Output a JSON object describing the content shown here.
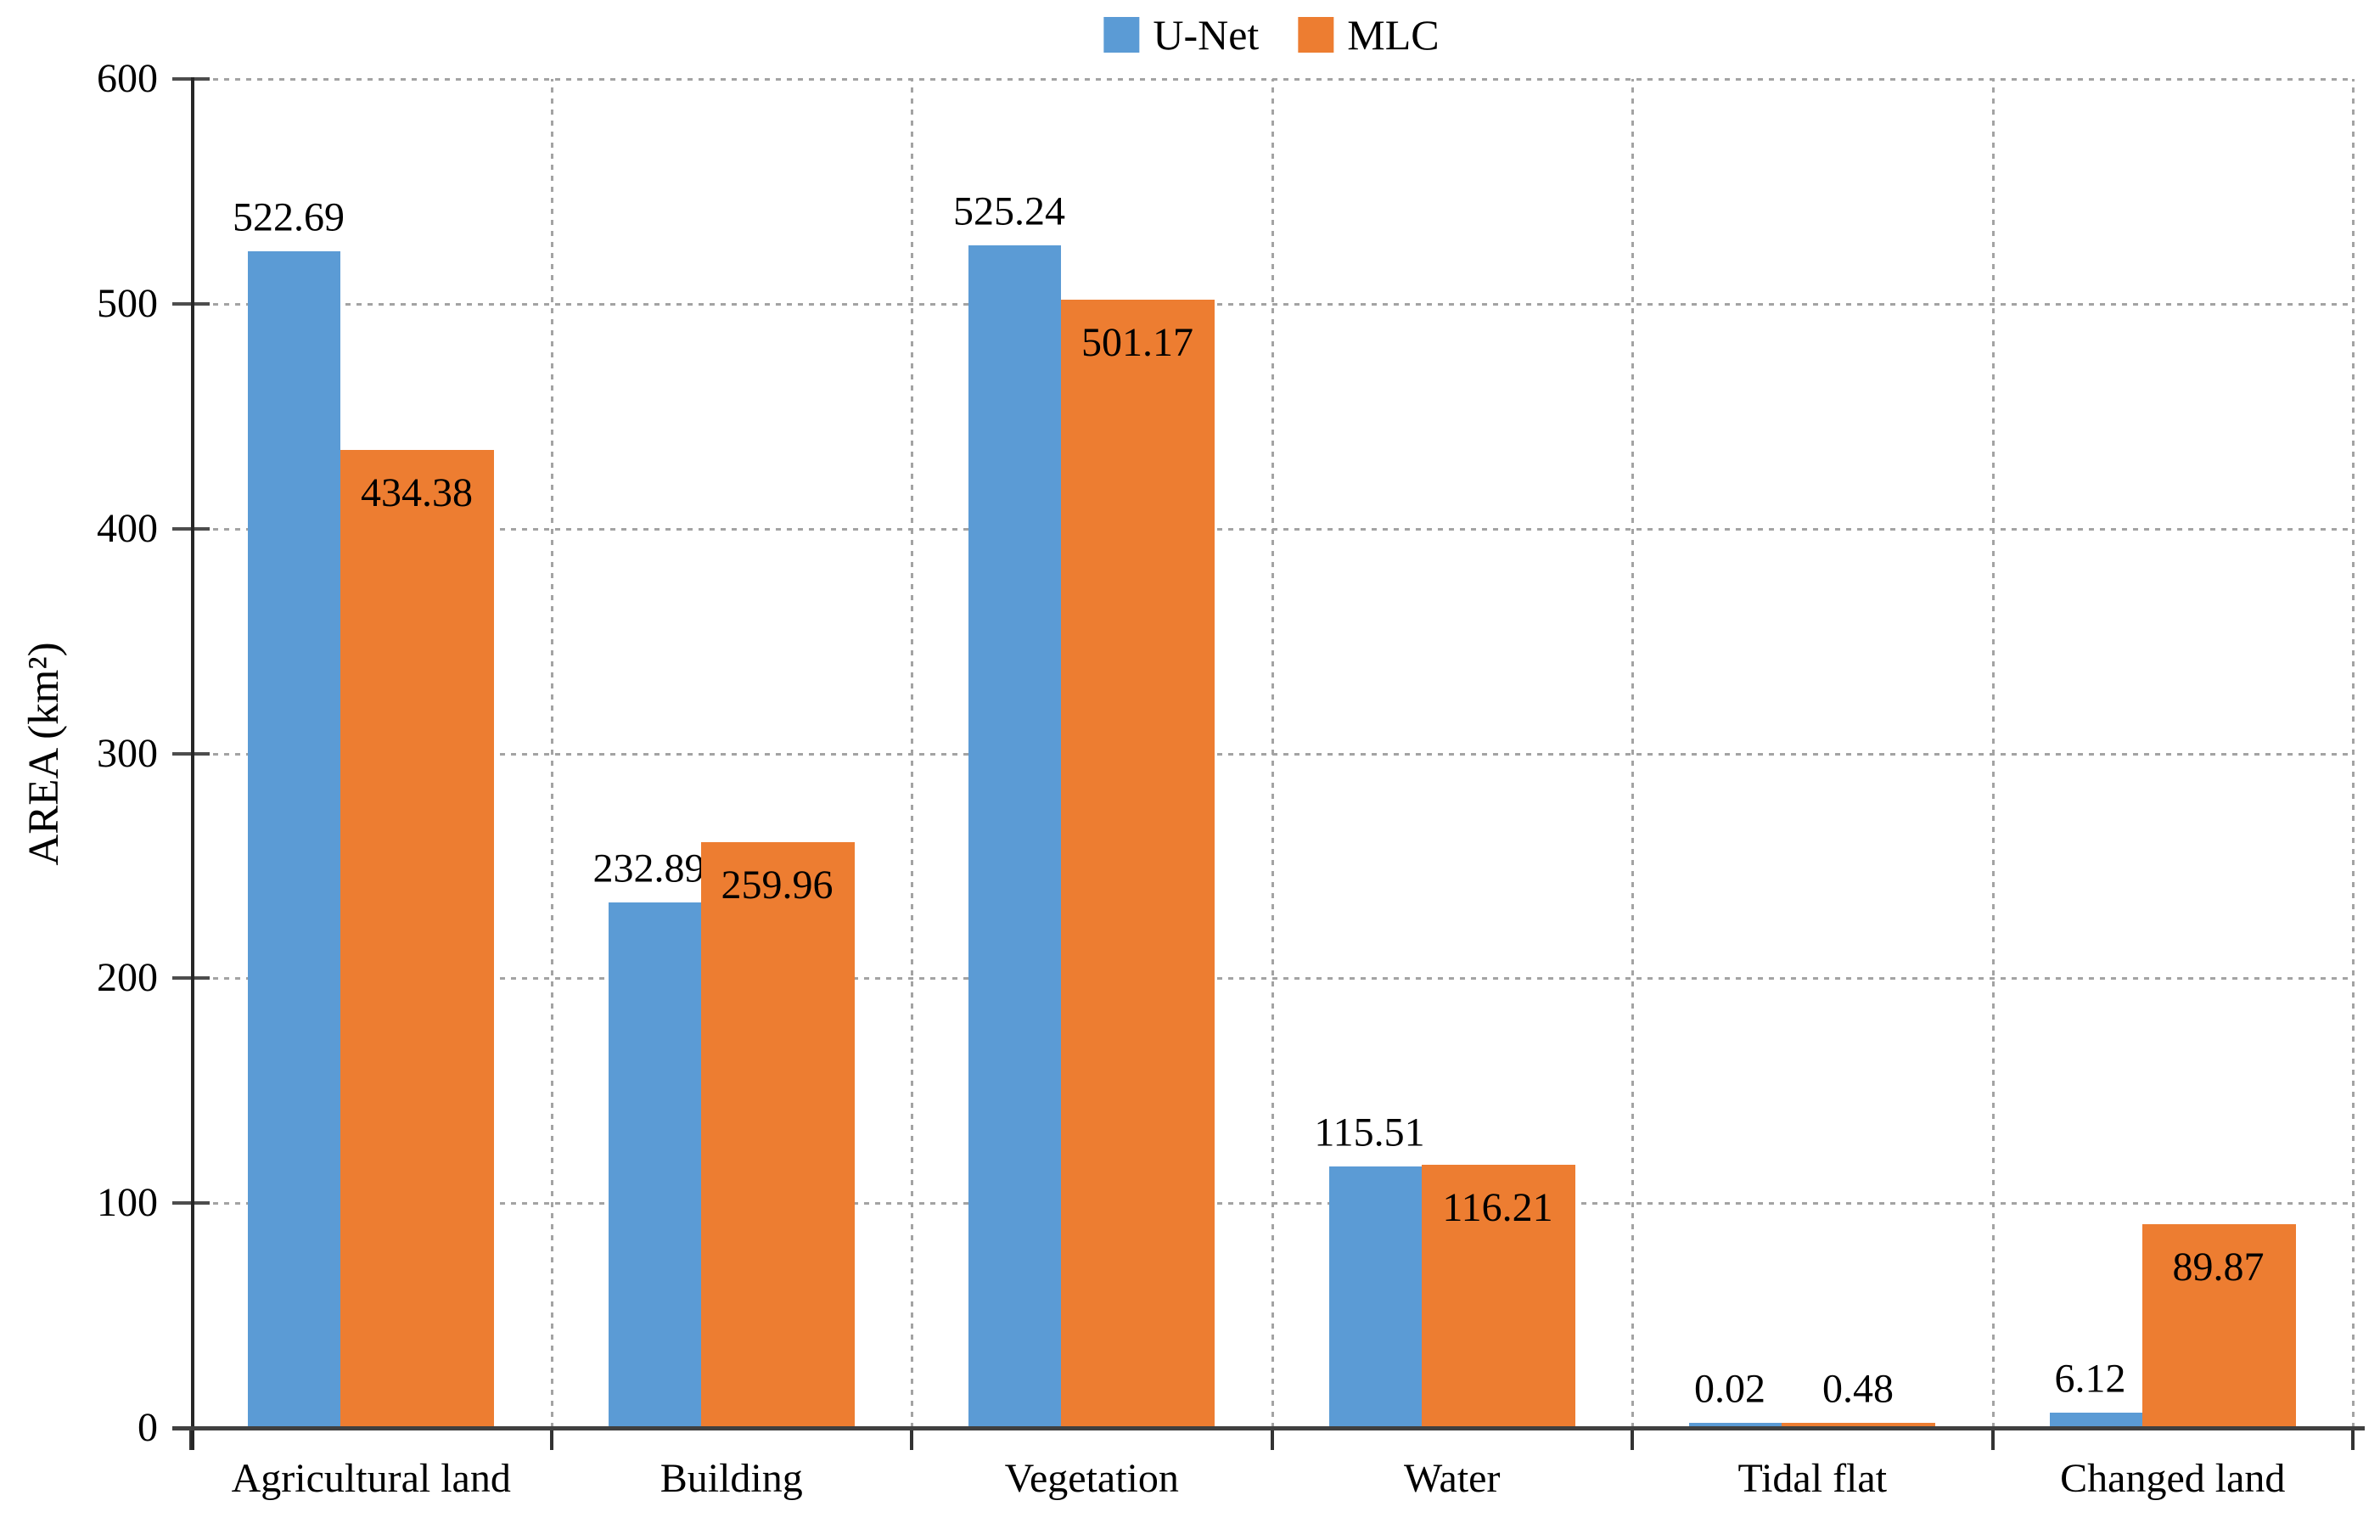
{
  "chart_data": {
    "type": "bar",
    "title": "",
    "categories": [
      "Agricultural land",
      "Building",
      "Vegetation",
      "Water",
      "Tidal flat",
      "Changed land"
    ],
    "series": [
      {
        "name": "U-Net",
        "color": "#5B9BD5",
        "values": [
          522.69,
          232.89,
          525.24,
          115.51,
          0.02,
          6.12
        ]
      },
      {
        "name": "MLC",
        "color": "#ED7D31",
        "values": [
          434.38,
          259.96,
          501.17,
          116.21,
          0.48,
          89.87
        ]
      }
    ],
    "xlabel": "",
    "ylabel": "AREA (km²)",
    "ylim": [
      0,
      600
    ],
    "yticks": [
      0,
      100,
      200,
      300,
      400,
      500,
      600
    ],
    "grid": true,
    "gridline_style": "dashed",
    "legend_position": "top-center",
    "value_labels": true,
    "value_label_decimals": 2
  },
  "colors": {
    "background": "#ffffff",
    "grid": "#a3a3a3",
    "axis": "#404040",
    "text": "#000000",
    "series_unet": "#5B9BD5",
    "series_mlc": "#ED7D31"
  }
}
